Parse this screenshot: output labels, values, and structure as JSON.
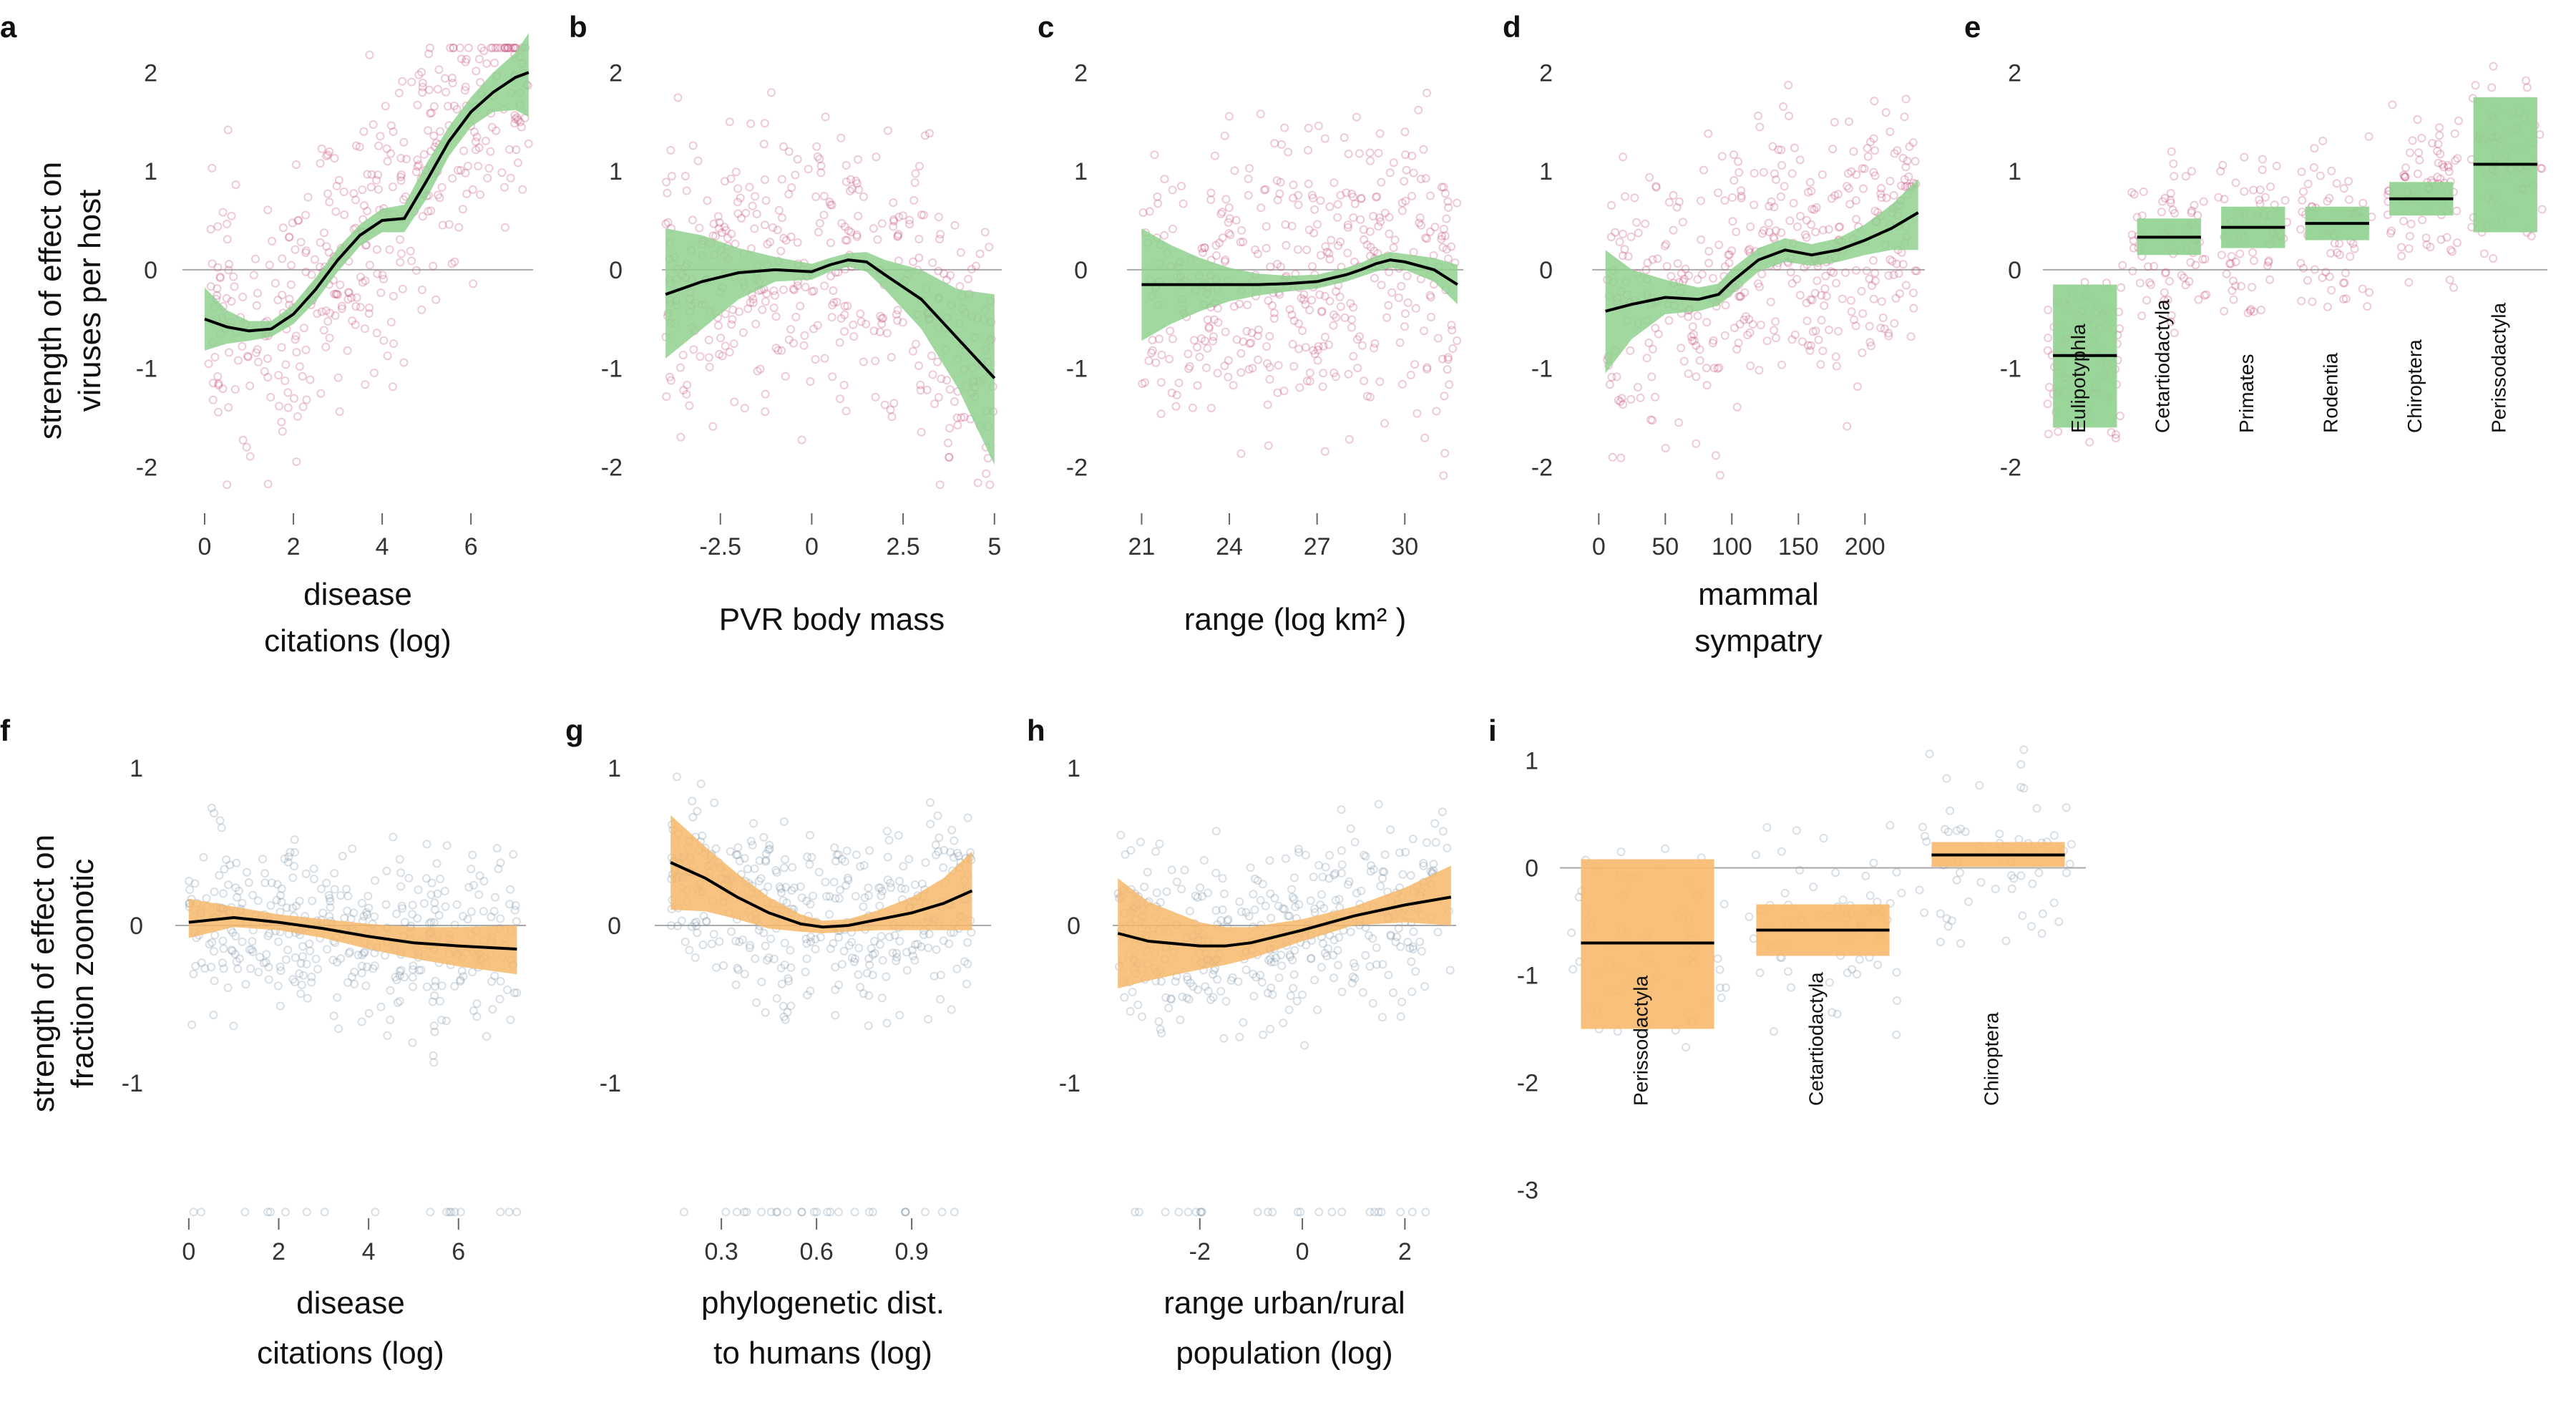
{
  "colors": {
    "green_band": "#8fd18f",
    "orange_band": "#f7b96b",
    "pink_points": "#c8507f",
    "blue_points": "#7f95a8",
    "fit_line": "#000000",
    "zero_line": "#aaaaaa"
  },
  "ylabels": {
    "top_line1": "strength of effect on",
    "top_line2": "viruses per host",
    "bottom_line1": "strength of effect on",
    "bottom_line2": "fraction zoonotic"
  },
  "chart_data": [
    {
      "id": "a",
      "letter": "a",
      "type": "line",
      "xlabel_lines": [
        "disease",
        "citations (log)"
      ],
      "xlim": [
        -0.5,
        7.4
      ],
      "ylim": [
        -2.2,
        2.3
      ],
      "xticks": [
        0,
        2,
        4,
        6
      ],
      "yticks": [
        2,
        1,
        0,
        -1,
        -2
      ],
      "band_color": "green",
      "point_color": "pink",
      "points": {
        "count": 430,
        "seed": 11
      },
      "series": [
        {
          "x": [
            0,
            0.5,
            1,
            1.5,
            2,
            2.5,
            3,
            3.5,
            4,
            4.5,
            5,
            5.5,
            6,
            6.5,
            7,
            7.3
          ],
          "y": [
            -0.5,
            -0.58,
            -0.62,
            -0.6,
            -0.45,
            -0.2,
            0.1,
            0.35,
            0.5,
            0.52,
            0.9,
            1.3,
            1.6,
            1.8,
            1.95,
            2.0
          ],
          "lower": [
            -0.82,
            -0.75,
            -0.72,
            -0.68,
            -0.55,
            -0.32,
            -0.02,
            0.24,
            0.38,
            0.38,
            0.72,
            1.15,
            1.45,
            1.6,
            1.62,
            1.55
          ],
          "upper": [
            -0.18,
            -0.41,
            -0.52,
            -0.52,
            -0.35,
            -0.08,
            0.22,
            0.46,
            0.62,
            0.66,
            1.08,
            1.45,
            1.75,
            2.0,
            2.2,
            2.4
          ]
        }
      ]
    },
    {
      "id": "b",
      "letter": "b",
      "type": "line",
      "xlabel_lines": [
        "PVR body mass"
      ],
      "xlim": [
        -4.1,
        5.2
      ],
      "ylim": [
        -2.2,
        2.3
      ],
      "xticks": [
        -2.5,
        0.0,
        2.5,
        5.0
      ],
      "yticks": [
        2,
        1,
        0,
        -1,
        -2
      ],
      "band_color": "green",
      "point_color": "pink",
      "points": {
        "count": 430,
        "seed": 12
      },
      "series": [
        {
          "x": [
            -4,
            -3,
            -2,
            -1,
            0,
            0.5,
            1,
            1.5,
            2,
            3,
            4,
            5
          ],
          "y": [
            -0.25,
            -0.12,
            -0.03,
            0.0,
            -0.02,
            0.05,
            0.1,
            0.08,
            -0.05,
            -0.3,
            -0.7,
            -1.1
          ],
          "lower": [
            -0.9,
            -0.6,
            -0.3,
            -0.12,
            -0.1,
            -0.02,
            0.03,
            -0.02,
            -0.2,
            -0.6,
            -1.2,
            -1.98
          ],
          "upper": [
            0.42,
            0.35,
            0.22,
            0.13,
            0.06,
            0.12,
            0.17,
            0.18,
            0.1,
            0.0,
            -0.2,
            -0.25
          ]
        }
      ]
    },
    {
      "id": "c",
      "letter": "c",
      "type": "line",
      "xlabel_lines": [
        "range (log km² )"
      ],
      "xlim": [
        20.5,
        32.0
      ],
      "ylim": [
        -2.2,
        2.3
      ],
      "xticks": [
        21,
        24,
        27,
        30
      ],
      "yticks": [
        2,
        1,
        0,
        -1,
        -2
      ],
      "band_color": "green",
      "point_color": "pink",
      "points": {
        "count": 430,
        "seed": 13
      },
      "series": [
        {
          "x": [
            21,
            22,
            23,
            24,
            25,
            26,
            27,
            28,
            28.5,
            29,
            29.5,
            30,
            31,
            31.8
          ],
          "y": [
            -0.15,
            -0.15,
            -0.15,
            -0.15,
            -0.15,
            -0.14,
            -0.12,
            -0.05,
            0.0,
            0.06,
            0.1,
            0.08,
            0.0,
            -0.15
          ],
          "lower": [
            -0.72,
            -0.55,
            -0.42,
            -0.32,
            -0.26,
            -0.22,
            -0.19,
            -0.12,
            -0.07,
            -0.02,
            0.02,
            0.0,
            -0.12,
            -0.35
          ],
          "upper": [
            0.42,
            0.25,
            0.12,
            0.02,
            -0.04,
            -0.06,
            -0.05,
            0.02,
            0.07,
            0.14,
            0.18,
            0.16,
            0.12,
            0.05
          ]
        }
      ]
    },
    {
      "id": "d",
      "letter": "d",
      "type": "line",
      "xlabel_lines": [
        "mammal",
        "sympatry"
      ],
      "xlim": [
        -5,
        245
      ],
      "ylim": [
        -2.2,
        2.3
      ],
      "xticks": [
        0,
        50,
        100,
        150,
        200
      ],
      "yticks": [
        2,
        1,
        0,
        -1,
        -2
      ],
      "band_color": "green",
      "point_color": "pink",
      "points": {
        "count": 430,
        "seed": 14
      },
      "series": [
        {
          "x": [
            5,
            25,
            50,
            75,
            90,
            100,
            120,
            140,
            160,
            180,
            200,
            220,
            240
          ],
          "y": [
            -0.42,
            -0.35,
            -0.28,
            -0.3,
            -0.25,
            -0.12,
            0.1,
            0.2,
            0.15,
            0.2,
            0.3,
            0.42,
            0.58
          ],
          "lower": [
            -1.05,
            -0.7,
            -0.45,
            -0.42,
            -0.36,
            -0.25,
            -0.02,
            0.08,
            0.04,
            0.08,
            0.15,
            0.2,
            0.2
          ],
          "upper": [
            0.2,
            0.0,
            -0.1,
            -0.18,
            -0.14,
            0.01,
            0.22,
            0.32,
            0.26,
            0.32,
            0.46,
            0.66,
            0.92
          ]
        }
      ]
    },
    {
      "id": "e",
      "letter": "e",
      "type": "bar",
      "ylim": [
        -2.2,
        2.3
      ],
      "yticks": [
        2,
        1,
        0,
        -1,
        -2
      ],
      "band_color": "green",
      "point_color": "pink",
      "points": {
        "count": 430,
        "seed": 15
      },
      "categories": [
        "Eulipotyphla",
        "Cetartiodactyla",
        "Primates",
        "Rodentia",
        "Chiroptera",
        "Perissodactyla"
      ],
      "values": [
        -0.87,
        0.33,
        0.43,
        0.47,
        0.72,
        1.07
      ],
      "lower": [
        -1.6,
        0.15,
        0.22,
        0.3,
        0.55,
        0.38
      ],
      "upper": [
        -0.15,
        0.52,
        0.64,
        0.64,
        0.89,
        1.75
      ]
    },
    {
      "id": "f",
      "letter": "f",
      "type": "line",
      "xlabel_lines": [
        "disease",
        "citations (log)"
      ],
      "xlim": [
        -0.3,
        7.5
      ],
      "ylim": [
        -1.85,
        1.15
      ],
      "xticks": [
        0,
        2,
        4,
        6
      ],
      "yticks": [
        1,
        0,
        -1
      ],
      "band_color": "orange",
      "point_color": "blue",
      "points": {
        "count": 430,
        "seed": 21
      },
      "series": [
        {
          "x": [
            0,
            1,
            2,
            3,
            4,
            5,
            6,
            7.3
          ],
          "y": [
            0.02,
            0.05,
            0.02,
            -0.02,
            -0.07,
            -0.11,
            -0.13,
            -0.15
          ],
          "lower": [
            -0.08,
            -0.01,
            -0.03,
            -0.08,
            -0.15,
            -0.21,
            -0.26,
            -0.31
          ],
          "upper": [
            0.17,
            0.12,
            0.07,
            0.04,
            0.01,
            -0.01,
            -0.01,
            0.0
          ]
        }
      ]
    },
    {
      "id": "g",
      "letter": "g",
      "type": "line",
      "xlabel_lines": [
        "phylogenetic dist.",
        "to humans (log)"
      ],
      "xlim": [
        0.09,
        1.15
      ],
      "ylim": [
        -1.85,
        1.15
      ],
      "xticks": [
        0.3,
        0.6,
        0.9
      ],
      "xtick_labels": [
        "0.3",
        "0.6",
        "0.9"
      ],
      "yticks": [
        1,
        0,
        -1
      ],
      "band_color": "orange",
      "point_color": "blue",
      "points": {
        "count": 430,
        "seed": 22
      },
      "series": [
        {
          "x": [
            0.14,
            0.25,
            0.35,
            0.45,
            0.55,
            0.62,
            0.7,
            0.8,
            0.9,
            1.0,
            1.09
          ],
          "y": [
            0.4,
            0.3,
            0.18,
            0.08,
            0.01,
            -0.01,
            0.0,
            0.04,
            0.08,
            0.14,
            0.22
          ],
          "lower": [
            0.1,
            0.09,
            0.04,
            -0.02,
            -0.04,
            -0.05,
            -0.04,
            -0.03,
            -0.03,
            -0.03,
            -0.03
          ],
          "upper": [
            0.7,
            0.5,
            0.33,
            0.18,
            0.07,
            0.03,
            0.04,
            0.1,
            0.18,
            0.3,
            0.47
          ]
        }
      ]
    },
    {
      "id": "h",
      "letter": "h",
      "type": "line",
      "xlabel_lines": [
        "range urban/rural",
        "population (log)"
      ],
      "xlim": [
        -3.7,
        3.0
      ],
      "ylim": [
        -1.85,
        1.15
      ],
      "xticks": [
        -2,
        0,
        2
      ],
      "yticks": [
        1,
        0,
        -1
      ],
      "band_color": "orange",
      "point_color": "blue",
      "points": {
        "count": 430,
        "seed": 23
      },
      "series": [
        {
          "x": [
            -3.6,
            -3,
            -2,
            -1.5,
            -1,
            0,
            1,
            2,
            2.9
          ],
          "y": [
            -0.05,
            -0.1,
            -0.13,
            -0.13,
            -0.11,
            -0.03,
            0.06,
            0.13,
            0.18
          ],
          "lower": [
            -0.4,
            -0.35,
            -0.28,
            -0.25,
            -0.21,
            -0.1,
            0.0,
            0.02,
            0.0
          ],
          "upper": [
            0.3,
            0.15,
            0.02,
            -0.01,
            -0.01,
            0.04,
            0.12,
            0.24,
            0.38
          ]
        }
      ]
    },
    {
      "id": "i",
      "letter": "i",
      "type": "bar",
      "ylim": [
        -3.25,
        1.15
      ],
      "yticks": [
        1,
        0,
        -1,
        -2,
        -3
      ],
      "band_color": "orange",
      "point_color": "blue",
      "points": {
        "count": 200,
        "seed": 24
      },
      "categories": [
        "Perissodactyla",
        "Cetartiodactyla",
        "Chiroptera"
      ],
      "values": [
        -0.7,
        -0.58,
        0.12
      ],
      "lower": [
        -1.5,
        -0.82,
        0.01
      ],
      "upper": [
        0.08,
        -0.34,
        0.24
      ]
    }
  ]
}
